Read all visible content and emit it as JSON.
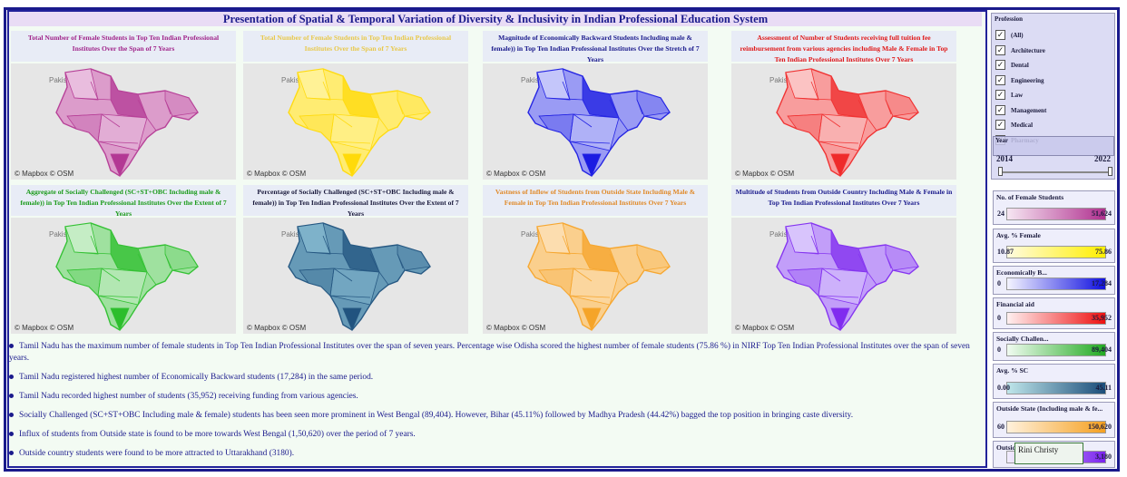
{
  "title": "Presentation of Spatial & Temporal Variation of Diversity & Inclusivity in Indian Professional Education System",
  "map_credit": "© Mapbox  © OSM",
  "map_country_label": "Pakistan",
  "panels": [
    {
      "title": "Total Number of Female Students in Top Ten Indian Professional Institutes Over the Span of 7 Years",
      "color": "#a0248a",
      "fill_low": "#f3d6ec",
      "fill_high": "#b0308f"
    },
    {
      "title": "Total Number of Female Students in Top Ten Indian Professional Institutes Over the Span of 7 Years",
      "color": "#e8c84a",
      "fill_low": "#fff6b0",
      "fill_high": "#ffd800"
    },
    {
      "title": "Magnitude of Economically Backward Students Including male & female)) in Top Ten Indian Professional Institutes Over the Stretch of 7 Years",
      "color": "#1a1a8c",
      "fill_low": "#e4e6ff",
      "fill_high": "#1010e0"
    },
    {
      "title": "Assessment of Number of Students receiving full tuition fee reimbursement from various agencies including Male & Female in Top Ten Indian Professional Institutes Over 7 Years",
      "color": "#e01818",
      "fill_low": "#fde0e0",
      "fill_high": "#ee2020"
    },
    {
      "title": "Aggregate of Socially Challenged (SC+ST+OBC Including male & female)) in Top Ten Indian Professional Institutes Over the Extent of 7 Years",
      "color": "#1a9a1a",
      "fill_low": "#e2f6e2",
      "fill_high": "#22bb22"
    },
    {
      "title": "Percentage of Socially Challenged (SC+ST+OBC Including male & female)) in Top Ten Indian Professional Institutes Over the Extent of 7 Years",
      "color": "#1a1a3c",
      "fill_low": "#8fc4d8",
      "fill_high": "#1b4d7a"
    },
    {
      "title": "Vastness of Inflow of Students from Outside State Including Male & Female in Top Ten Indian Professional Institutes Over 7 Years",
      "color": "#e08a2a",
      "fill_low": "#fde8c8",
      "fill_high": "#f5a020"
    },
    {
      "title": "Multitude of Students from Outside Country Including Male & Female in Top Ten Indian Professional Institutes Over 7 Years",
      "color": "#1a1a8c",
      "fill_low": "#e8e0ff",
      "fill_high": "#7a22ee"
    }
  ],
  "notes": [
    "Tamil Nadu has the maximum number of female students in Top Ten Indian Professional Institutes over the span of seven years.  Percentage wise Odisha scored the highest number of female students (75.86 %) in NIRF Top Ten Indian Professional Institutes over the span of seven years.",
    "Tamil Nadu registered highest number of Economically Backward students (17,284) in the same period.",
    "Tamil Nadu recorded highest number of students (35,952) receiving funding from various agencies.",
    "Socially Challenged (SC+ST+OBC Including male & female) students has been seen more prominent in West Bengal (89,404). However, Bihar (45.11%) followed by Madhya Pradesh (44.42%) bagged the top position in bringing caste diversity.",
    "Influx of students from Outside state is found to be more towards West Bengal (1,50,620) over the period of 7 years.",
    "Outside country students were found to be more attracted to Uttarakhand (3180)."
  ],
  "filter": {
    "title": "Profession",
    "options": [
      "(All)",
      "Architecture",
      "Dental",
      "Engineering",
      "Law",
      "Management",
      "Medical",
      "Pharmacy"
    ],
    "year_label": "Year",
    "year_min": "2014",
    "year_max": "2022"
  },
  "legends": [
    {
      "title": "No. of Female Students",
      "min": "24",
      "max": "51,624",
      "c1": "#f6e6f2",
      "c2": "#b0308f"
    },
    {
      "title": "Avg. % Female",
      "min": "10.87",
      "max": "75.86",
      "c1": "#fffbe0",
      "c2": "#ffef00"
    },
    {
      "title": "Economically B...",
      "min": "0",
      "max": "17,284",
      "c1": "#f4f4ff",
      "c2": "#1010e0"
    },
    {
      "title": "Financial aid",
      "min": "0",
      "max": "35,952",
      "c1": "#fff0f0",
      "c2": "#ee1010"
    },
    {
      "title": "Socially Challen...",
      "min": "0",
      "max": "89,404",
      "c1": "#f0fbf0",
      "c2": "#22aa22"
    },
    {
      "title": "Avg. % SC",
      "min": "0.00",
      "max": "45.11",
      "c1": "#bfe6ea",
      "c2": "#1b4d7a"
    },
    {
      "title": "Outside State (Including male & fe...",
      "min": "60",
      "max": "150,620",
      "c1": "#fff1dc",
      "c2": "#f5a020"
    },
    {
      "title": "Outside Country",
      "min": "",
      "max": "3,180",
      "c1": "#f2eeff",
      "c2": "#7a22ee"
    }
  ],
  "tooltip_text": "Rini Christy",
  "chart_data": [
    {
      "type": "map",
      "title": "Total Number of Female Students in Top Ten Indian Professional Institutes Over the Span of 7 Years",
      "legend": "No. of Female Students",
      "range": [
        24,
        51624
      ]
    },
    {
      "type": "map",
      "title": "Total Number of Female Students in Top Ten Indian Professional Institutes Over the Span of 7 Years",
      "legend": "Avg. % Female",
      "range": [
        10.87,
        75.86
      ]
    },
    {
      "type": "map",
      "title": "Magnitude of Economically Backward Students Including male & female)) in Top Ten Indian Professional Institutes Over the Stretch of 7 Years",
      "legend": "Economically B...",
      "range": [
        0,
        17284
      ]
    },
    {
      "type": "map",
      "title": "Assessment of Number of Students receiving full tuition fee reimbursement from various agencies including Male & Female in Top Ten Indian Professional Institutes Over 7 Years",
      "legend": "Financial aid",
      "range": [
        0,
        35952
      ]
    },
    {
      "type": "map",
      "title": "Aggregate of Socially Challenged (SC+ST+OBC Including male & female)) in Top Ten Indian Professional Institutes Over the Extent of 7 Years",
      "legend": "Socially Challen...",
      "range": [
        0,
        89404
      ]
    },
    {
      "type": "map",
      "title": "Percentage of Socially Challenged (SC+ST+OBC Including male & female)) in Top Ten Indian Professional Institutes Over the Extent of 7 Years",
      "legend": "Avg. % SC",
      "range": [
        0,
        45.11
      ]
    },
    {
      "type": "map",
      "title": "Vastness of Inflow of Students from Outside State Including Male & Female in Top Ten Indian Professional Institutes Over 7 Years",
      "legend": "Outside State (Including male & fe...",
      "range": [
        60,
        150620
      ]
    },
    {
      "type": "map",
      "title": "Multitude of Students from Outside Country Including Male & Female in Top Ten Indian Professional Institutes Over 7 Years",
      "legend": "Outside Country",
      "range": [
        0,
        3180
      ]
    }
  ]
}
